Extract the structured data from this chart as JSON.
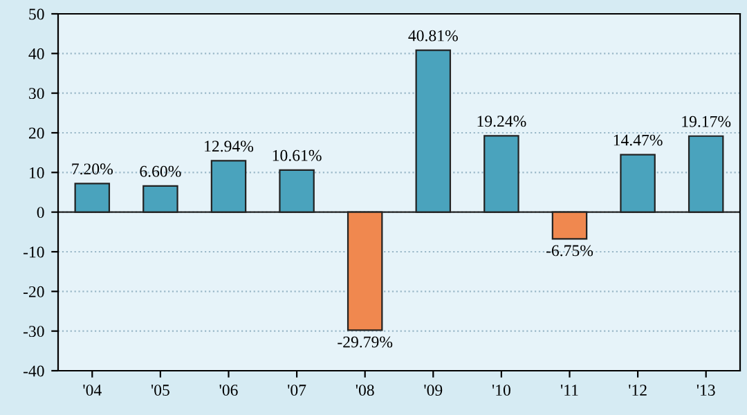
{
  "chart_data": {
    "type": "bar",
    "categories": [
      "'04",
      "'05",
      "'06",
      "'07",
      "'08",
      "'09",
      "'10",
      "'11",
      "'12",
      "'13"
    ],
    "values": [
      7.2,
      6.6,
      12.94,
      10.61,
      -29.79,
      40.81,
      19.24,
      -6.75,
      14.47,
      19.17
    ],
    "value_labels": [
      "7.20%",
      "6.60%",
      "12.94%",
      "10.61%",
      "-29.79%",
      "40.81%",
      "19.24%",
      "-6.75%",
      "14.47%",
      "19.17%"
    ],
    "colors": [
      "#4aa3bd",
      "#4aa3bd",
      "#4aa3bd",
      "#4aa3bd",
      "#f0884f",
      "#4aa3bd",
      "#4aa3bd",
      "#f0884f",
      "#4aa3bd",
      "#4aa3bd"
    ],
    "ylim": [
      -40,
      50
    ],
    "yticks": [
      -40,
      -30,
      -20,
      -10,
      0,
      10,
      20,
      30,
      40,
      50
    ],
    "grid": "y"
  }
}
